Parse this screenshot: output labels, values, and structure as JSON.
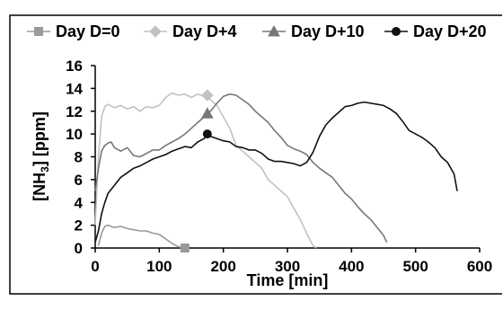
{
  "chart_data": {
    "type": "line",
    "xlabel": "Time [min]",
    "ylabel": "[NH3] [ppm]",
    "ylabel_parts": {
      "before": "[NH",
      "sub": "3",
      "after": "] [ppm]"
    },
    "xlim": [
      0,
      600
    ],
    "ylim": [
      0,
      16
    ],
    "x_ticks": [
      "0",
      "100",
      "200",
      "300",
      "400",
      "500",
      "600"
    ],
    "y_ticks": [
      "0",
      "2",
      "4",
      "6",
      "8",
      "10",
      "12",
      "14",
      "16"
    ],
    "grid": false,
    "legend_position": "top",
    "series": [
      {
        "name": "Day D=0",
        "color": "#9a9a9a",
        "marker": "square",
        "marker_x": 175,
        "points": [
          [
            5,
            0.2
          ],
          [
            10,
            1.3
          ],
          [
            15,
            1.9
          ],
          [
            20,
            2.0
          ],
          [
            30,
            1.8
          ],
          [
            40,
            1.9
          ],
          [
            50,
            1.7
          ],
          [
            60,
            1.6
          ],
          [
            70,
            1.5
          ],
          [
            80,
            1.5
          ],
          [
            90,
            1.3
          ],
          [
            100,
            1.2
          ],
          [
            110,
            0.8
          ],
          [
            120,
            0.4
          ],
          [
            130,
            0.1
          ],
          [
            140,
            0.0
          ]
        ]
      },
      {
        "name": "Day D+4",
        "color": "#c2c2c2",
        "marker": "diamond",
        "marker_x": 175,
        "points": [
          [
            0,
            2.0
          ],
          [
            5,
            8.0
          ],
          [
            10,
            11.5
          ],
          [
            15,
            12.4
          ],
          [
            20,
            12.6
          ],
          [
            30,
            12.3
          ],
          [
            40,
            12.5
          ],
          [
            50,
            12.2
          ],
          [
            60,
            12.4
          ],
          [
            70,
            12.0
          ],
          [
            80,
            12.4
          ],
          [
            90,
            12.3
          ],
          [
            100,
            12.5
          ],
          [
            110,
            13.2
          ],
          [
            120,
            13.6
          ],
          [
            130,
            13.4
          ],
          [
            140,
            13.5
          ],
          [
            150,
            13.2
          ],
          [
            160,
            13.5
          ],
          [
            170,
            13.3
          ],
          [
            175,
            13.4
          ],
          [
            180,
            13.0
          ],
          [
            190,
            12.5
          ],
          [
            200,
            11.5
          ],
          [
            210,
            10.5
          ],
          [
            220,
            9.0
          ],
          [
            230,
            8.5
          ],
          [
            240,
            8.0
          ],
          [
            250,
            7.5
          ],
          [
            260,
            7.0
          ],
          [
            270,
            6.0
          ],
          [
            280,
            5.5
          ],
          [
            290,
            5.0
          ],
          [
            300,
            4.5
          ],
          [
            310,
            3.5
          ],
          [
            320,
            2.5
          ],
          [
            330,
            1.3
          ],
          [
            340,
            0.2
          ],
          [
            345,
            0.0
          ]
        ]
      },
      {
        "name": "Day D+10",
        "color": "#777777",
        "marker": "triangle",
        "marker_x": 175,
        "points": [
          [
            0,
            5.0
          ],
          [
            5,
            7.0
          ],
          [
            10,
            8.5
          ],
          [
            15,
            9.0
          ],
          [
            20,
            9.2
          ],
          [
            25,
            9.3
          ],
          [
            30,
            8.8
          ],
          [
            40,
            8.5
          ],
          [
            50,
            8.8
          ],
          [
            60,
            8.1
          ],
          [
            70,
            8.0
          ],
          [
            80,
            8.3
          ],
          [
            90,
            8.6
          ],
          [
            100,
            8.6
          ],
          [
            110,
            9.0
          ],
          [
            120,
            9.3
          ],
          [
            130,
            9.6
          ],
          [
            140,
            10.0
          ],
          [
            150,
            10.5
          ],
          [
            160,
            11.0
          ],
          [
            170,
            11.5
          ],
          [
            175,
            11.8
          ],
          [
            180,
            12.0
          ],
          [
            190,
            12.7
          ],
          [
            200,
            13.3
          ],
          [
            210,
            13.5
          ],
          [
            220,
            13.4
          ],
          [
            230,
            13.0
          ],
          [
            240,
            12.6
          ],
          [
            250,
            12.0
          ],
          [
            260,
            11.5
          ],
          [
            270,
            11.0
          ],
          [
            280,
            10.3
          ],
          [
            290,
            9.7
          ],
          [
            300,
            9.0
          ],
          [
            310,
            8.7
          ],
          [
            320,
            8.5
          ],
          [
            330,
            8.2
          ],
          [
            340,
            7.5
          ],
          [
            350,
            7.0
          ],
          [
            360,
            6.6
          ],
          [
            370,
            6.2
          ],
          [
            380,
            5.5
          ],
          [
            390,
            4.8
          ],
          [
            400,
            4.3
          ],
          [
            410,
            3.6
          ],
          [
            420,
            3.0
          ],
          [
            430,
            2.5
          ],
          [
            440,
            1.8
          ],
          [
            450,
            1.1
          ],
          [
            455,
            0.5
          ]
        ]
      },
      {
        "name": "Day D+20",
        "color": "#111111",
        "marker": "circle",
        "marker_x": 175,
        "points": [
          [
            0,
            0.5
          ],
          [
            5,
            1.5
          ],
          [
            10,
            3.0
          ],
          [
            15,
            4.0
          ],
          [
            20,
            4.8
          ],
          [
            30,
            5.5
          ],
          [
            40,
            6.2
          ],
          [
            50,
            6.6
          ],
          [
            60,
            7.0
          ],
          [
            70,
            7.2
          ],
          [
            80,
            7.5
          ],
          [
            90,
            7.8
          ],
          [
            100,
            8.0
          ],
          [
            110,
            8.2
          ],
          [
            120,
            8.5
          ],
          [
            130,
            8.7
          ],
          [
            140,
            8.9
          ],
          [
            150,
            8.8
          ],
          [
            160,
            9.3
          ],
          [
            170,
            9.6
          ],
          [
            175,
            10.0
          ],
          [
            180,
            9.8
          ],
          [
            190,
            9.6
          ],
          [
            200,
            9.4
          ],
          [
            210,
            9.3
          ],
          [
            220,
            8.9
          ],
          [
            230,
            8.8
          ],
          [
            240,
            8.6
          ],
          [
            250,
            8.6
          ],
          [
            260,
            8.3
          ],
          [
            270,
            7.8
          ],
          [
            280,
            7.6
          ],
          [
            290,
            7.6
          ],
          [
            300,
            7.5
          ],
          [
            310,
            7.4
          ],
          [
            320,
            7.2
          ],
          [
            330,
            7.5
          ],
          [
            340,
            8.4
          ],
          [
            350,
            9.8
          ],
          [
            360,
            10.8
          ],
          [
            370,
            11.4
          ],
          [
            380,
            11.9
          ],
          [
            390,
            12.4
          ],
          [
            400,
            12.5
          ],
          [
            410,
            12.7
          ],
          [
            420,
            12.8
          ],
          [
            430,
            12.7
          ],
          [
            440,
            12.6
          ],
          [
            450,
            12.5
          ],
          [
            460,
            12.2
          ],
          [
            470,
            11.8
          ],
          [
            480,
            11.1
          ],
          [
            490,
            10.3
          ],
          [
            500,
            10.0
          ],
          [
            510,
            9.7
          ],
          [
            520,
            9.3
          ],
          [
            530,
            8.8
          ],
          [
            540,
            8.0
          ],
          [
            550,
            7.5
          ],
          [
            560,
            6.5
          ],
          [
            565,
            5.0
          ]
        ]
      }
    ]
  }
}
